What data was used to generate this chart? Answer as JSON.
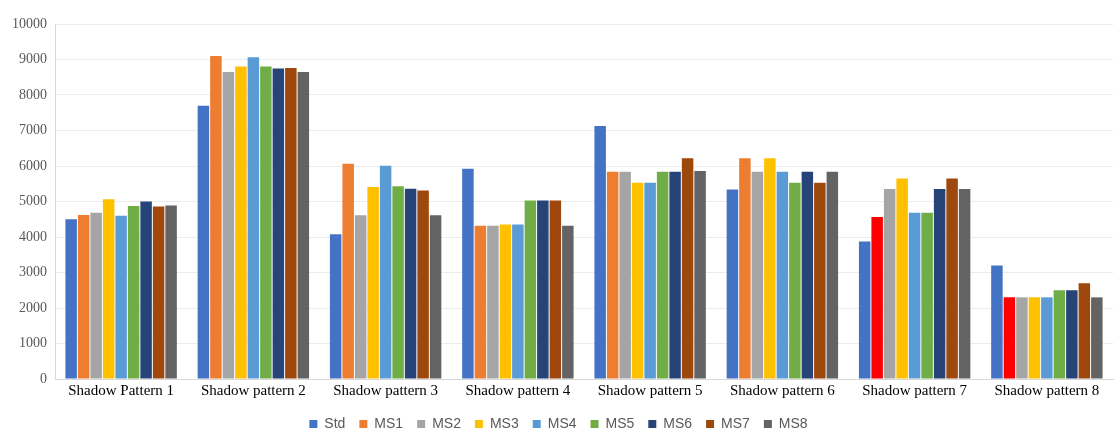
{
  "chart_data": {
    "type": "bar",
    "categories": [
      "Shadow Pattern 1",
      "Shadow pattern 2",
      "Shadow pattern 3",
      "Shadow pattern 4",
      "Shadow pattern 5",
      "Shadow pattern 6",
      "Shadow pattern 7",
      "Shadow pattern 8"
    ],
    "series": [
      {
        "name": "Std",
        "color": "#4472c4",
        "values": [
          4500,
          7700,
          4080,
          5920,
          7130,
          5340,
          3870,
          3200
        ]
      },
      {
        "name": "MS1",
        "color": "#ed7d31",
        "colors": [
          "#ed7d31",
          "#ed7d31",
          "#ed7d31",
          "#ed7d31",
          "#ed7d31",
          "#ed7d31",
          "#ff0000",
          "#ff0000"
        ],
        "values": [
          4620,
          9100,
          6060,
          4320,
          5840,
          6220,
          4560,
          2300
        ]
      },
      {
        "name": "MS2",
        "color": "#a5a5a5",
        "values": [
          4680,
          8650,
          4610,
          4320,
          5840,
          5840,
          5350,
          2300
        ]
      },
      {
        "name": "MS3",
        "color": "#ffc000",
        "values": [
          5060,
          8800,
          5410,
          4350,
          5530,
          6220,
          5650,
          2300
        ]
      },
      {
        "name": "MS4",
        "color": "#5b9bd5",
        "values": [
          4600,
          9060,
          6010,
          4350,
          5530,
          5840,
          4680,
          2300
        ]
      },
      {
        "name": "MS5",
        "color": "#70ad47",
        "values": [
          4870,
          8800,
          5430,
          5030,
          5840,
          5530,
          4680,
          2500
        ]
      },
      {
        "name": "MS6",
        "color": "#264478",
        "values": [
          5000,
          8750,
          5360,
          5030,
          5840,
          5840,
          5350,
          2500
        ]
      },
      {
        "name": "MS7",
        "color": "#9e480e",
        "values": [
          4860,
          8760,
          5310,
          5030,
          6220,
          5530,
          5650,
          2700
        ]
      },
      {
        "name": "MS8",
        "color": "#636363",
        "values": [
          4890,
          8650,
          4610,
          4320,
          5860,
          5840,
          5350,
          2300
        ]
      }
    ],
    "ylim": [
      0,
      10000
    ],
    "yticks": [
      0,
      1000,
      2000,
      3000,
      4000,
      5000,
      6000,
      7000,
      8000,
      9000,
      10000
    ],
    "grid": "y",
    "legend": "bottom"
  }
}
